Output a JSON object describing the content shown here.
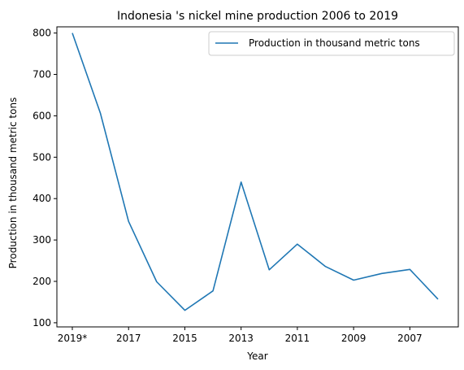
{
  "chart_data": {
    "type": "line",
    "title": "Indonesia 's nickel mine production 2006 to 2019",
    "xlabel": "Year",
    "ylabel": "Production in thousand metric tons",
    "x": [
      "2019*",
      "2018",
      "2017",
      "2016",
      "2015",
      "2014",
      "2013",
      "2012",
      "2011",
      "2010",
      "2009",
      "2008",
      "2007",
      "2006"
    ],
    "x_tick_labels": [
      "2019*",
      "2017",
      "2015",
      "2013",
      "2011",
      "2009",
      "2007"
    ],
    "series": [
      {
        "name": "Production in thousand metric tons",
        "color": "#1f77b4",
        "values": [
          800,
          606,
          345,
          199,
          130,
          177,
          440,
          228,
          290,
          236,
          203,
          219,
          229,
          157
        ]
      }
    ],
    "ylim": [
      90,
      815
    ],
    "yticks": [
      100,
      200,
      300,
      400,
      500,
      600,
      700,
      800
    ],
    "grid": false,
    "legend_position": "top-right"
  }
}
